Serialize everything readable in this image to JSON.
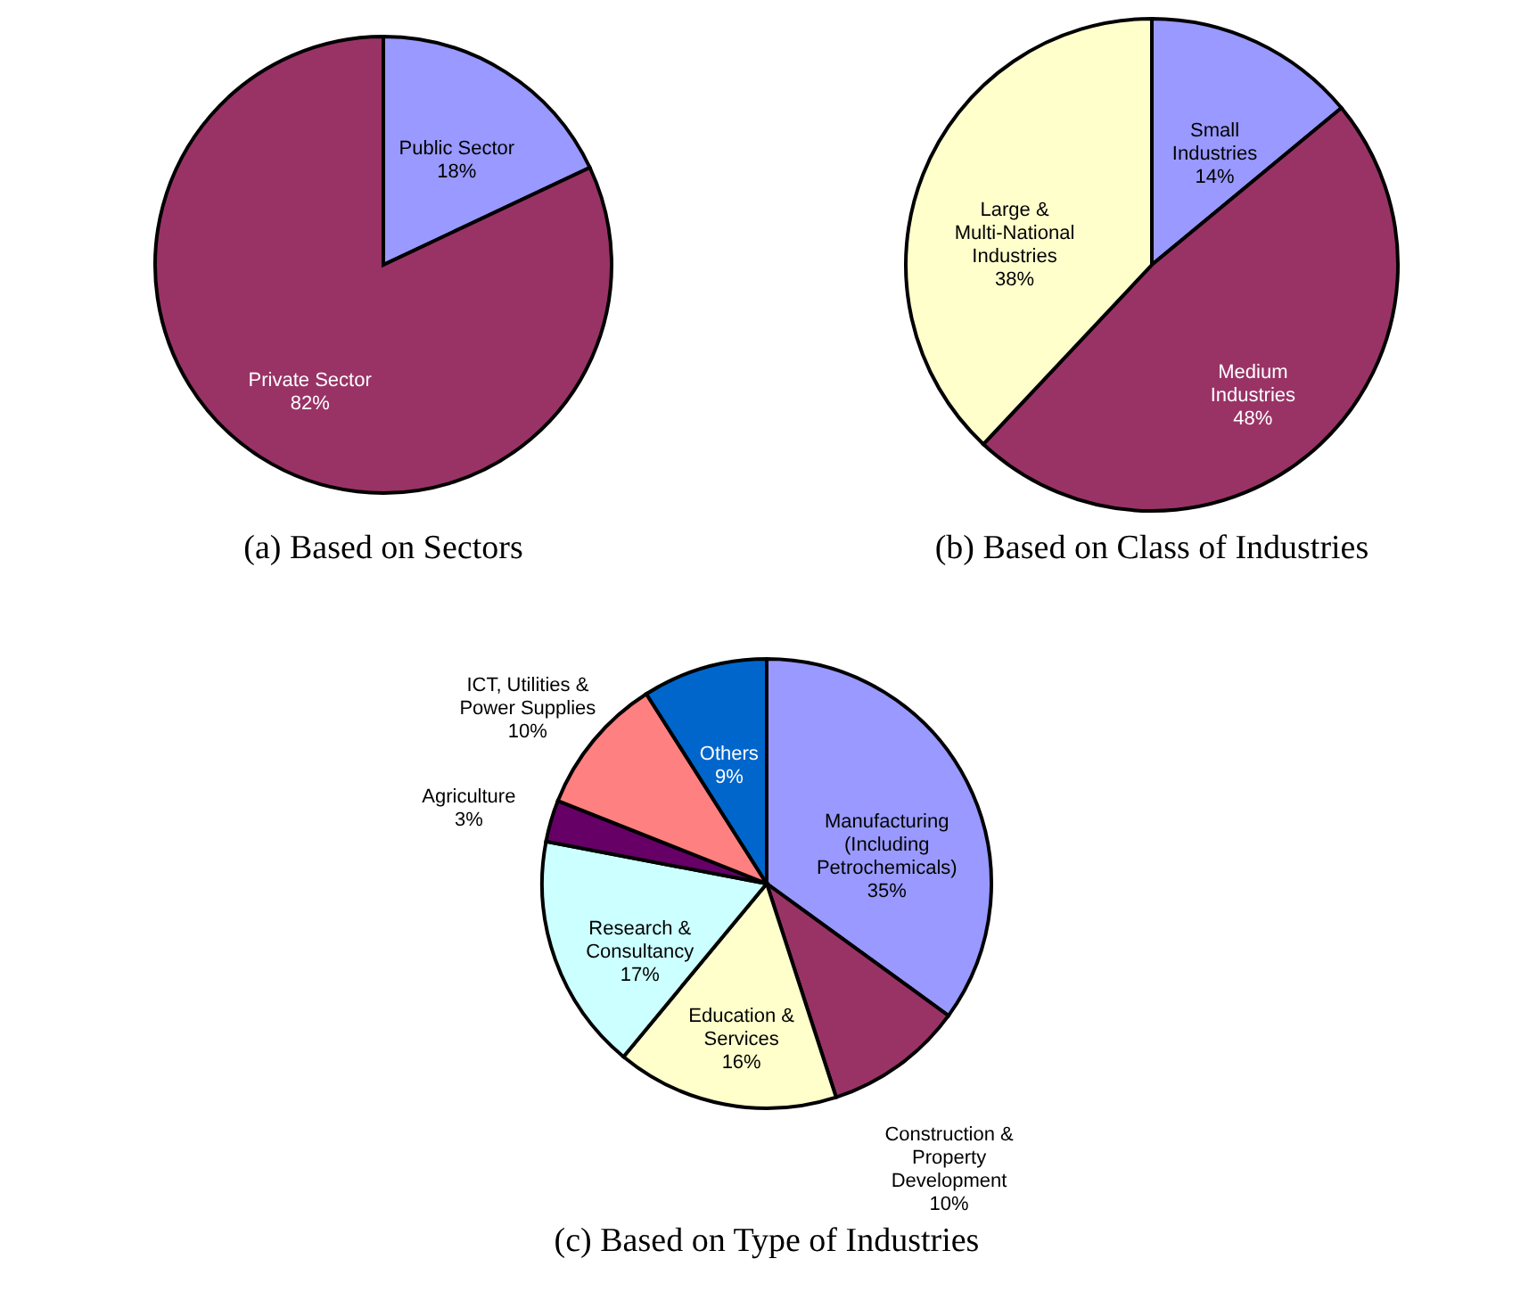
{
  "chart_data": [
    {
      "type": "pie",
      "title": "(a)  Based on Sectors",
      "categories": [
        "Public Sector",
        "Private Sector"
      ],
      "values": [
        18,
        82
      ],
      "colors": [
        "#9999ff",
        "#993366"
      ],
      "value_labels": [
        "18%",
        "82%"
      ]
    },
    {
      "type": "pie",
      "title": "(b)  Based on Class of Industries",
      "categories": [
        "Small Industries",
        "Medium Industries",
        "Large & Multi-National Industries"
      ],
      "values": [
        14,
        48,
        38
      ],
      "colors": [
        "#9999ff",
        "#993366",
        "#ffffcc"
      ],
      "value_labels": [
        "14%",
        "48%",
        "38%"
      ]
    },
    {
      "type": "pie",
      "title": "(c)  Based on Type of Industries",
      "categories": [
        "Manufacturing (Including Petrochemicals)",
        "Construction & Property Development",
        "Education & Services",
        "Research & Consultancy",
        "Agriculture",
        "ICT, Utilities & Power Supplies",
        "Others"
      ],
      "values": [
        35,
        10,
        16,
        17,
        3,
        10,
        9
      ],
      "colors": [
        "#9999ff",
        "#993366",
        "#ffffcc",
        "#ccffff",
        "#660066",
        "#ff8080",
        "#0066cc"
      ],
      "value_labels": [
        "35%",
        "10%",
        "16%",
        "17%",
        "3%",
        "10%",
        "9%"
      ]
    }
  ]
}
